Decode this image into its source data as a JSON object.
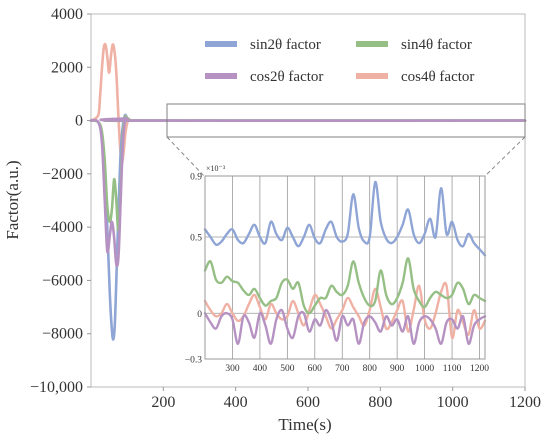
{
  "chart_data": [
    {
      "type": "line",
      "xlabel": "Time(s)",
      "ylabel": "Factor(a.u.)",
      "xlim": [
        0,
        1200
      ],
      "ylim": [
        -10000,
        4000
      ],
      "xticks": [
        200,
        400,
        600,
        800,
        1000,
        1200
      ],
      "xtick_labels": [
        "200",
        "400",
        "600",
        "800",
        "1000",
        "1200"
      ],
      "yticks": [
        4000,
        2000,
        0,
        -2000,
        -4000,
        -6000,
        -8000,
        -10000
      ],
      "ytick_labels": [
        "4000",
        "2000",
        "0",
        "−2000",
        "−4000",
        "−6000",
        "−8000",
        "−10,000"
      ],
      "grid": false,
      "legend": "top-right",
      "series": [
        {
          "name": "sin2θ factor",
          "color": "#8fa5d5",
          "x": [
            0,
            20,
            30,
            38,
            45,
            52,
            58,
            62,
            66,
            70,
            74,
            78,
            82,
            88,
            94,
            100,
            110,
            120,
            200,
            1200
          ],
          "y": [
            0,
            -60,
            -500,
            -1800,
            -4000,
            -6500,
            -7900,
            -8200,
            -7600,
            -6000,
            -4200,
            -2600,
            -1200,
            -200,
            200,
            100,
            0,
            0,
            0,
            0
          ]
        },
        {
          "name": "sin4θ factor",
          "color": "#95bf85",
          "x": [
            0,
            20,
            30,
            38,
            45,
            52,
            58,
            64,
            70,
            75,
            80,
            85,
            90,
            95,
            100,
            110,
            120,
            1200
          ],
          "y": [
            0,
            -50,
            -400,
            -1500,
            -3200,
            -3800,
            -3300,
            -2200,
            -3000,
            -4100,
            -3400,
            -1500,
            -200,
            150,
            100,
            0,
            0,
            0
          ]
        },
        {
          "name": "cos2θ factor",
          "color": "#b692c2",
          "x": [
            0,
            20,
            30,
            38,
            45,
            52,
            58,
            64,
            70,
            76,
            82,
            88,
            94,
            100,
            110,
            1200
          ],
          "y": [
            0,
            -60,
            -800,
            -3000,
            -4900,
            -4300,
            -3800,
            -4400,
            -5400,
            -5100,
            -3000,
            -900,
            0,
            80,
            0,
            0
          ]
        },
        {
          "name": "cos4θ factor",
          "color": "#f0b1a5",
          "x": [
            0,
            20,
            25,
            30,
            35,
            40,
            45,
            50,
            55,
            60,
            65,
            70,
            75,
            80,
            85,
            90,
            95,
            100,
            105,
            110,
            120,
            1200
          ],
          "y": [
            0,
            200,
            900,
            1900,
            2700,
            2850,
            2400,
            1800,
            2400,
            2850,
            2600,
            1800,
            400,
            -900,
            -1600,
            -1200,
            -500,
            -100,
            50,
            0,
            0,
            0
          ]
        }
      ]
    },
    {
      "type": "line",
      "title": "×10⁻³",
      "xlim": [
        200,
        1220
      ],
      "ylim": [
        -0.3,
        0.9
      ],
      "xticks": [
        300,
        400,
        500,
        600,
        700,
        800,
        900,
        1000,
        1100,
        1200
      ],
      "xtick_labels": [
        "300",
        "400",
        "500",
        "600",
        "700",
        "800",
        "900",
        "1000",
        "1100",
        "1200"
      ],
      "yticks": [
        0.9,
        0.5,
        0,
        -0.3
      ],
      "ytick_labels": [
        "0.9",
        "0.5",
        "0",
        "−0.3"
      ],
      "grid": true,
      "series": [
        {
          "name": "sin2θ factor",
          "color": "#8fa5d5",
          "x": [
            200,
            220,
            240,
            260,
            280,
            300,
            320,
            340,
            360,
            380,
            400,
            420,
            440,
            460,
            480,
            500,
            520,
            540,
            560,
            580,
            600,
            620,
            640,
            660,
            680,
            700,
            720,
            740,
            760,
            780,
            800,
            820,
            840,
            860,
            880,
            900,
            920,
            940,
            960,
            980,
            1000,
            1020,
            1040,
            1060,
            1080,
            1100,
            1120,
            1140,
            1160,
            1180,
            1200,
            1220
          ],
          "y": [
            0.55,
            0.5,
            0.45,
            0.47,
            0.52,
            0.55,
            0.48,
            0.46,
            0.52,
            0.58,
            0.5,
            0.46,
            0.6,
            0.52,
            0.48,
            0.56,
            0.5,
            0.44,
            0.5,
            0.58,
            0.49,
            0.46,
            0.55,
            0.6,
            0.5,
            0.47,
            0.52,
            0.78,
            0.56,
            0.47,
            0.5,
            0.86,
            0.6,
            0.49,
            0.46,
            0.5,
            0.58,
            0.68,
            0.52,
            0.46,
            0.52,
            0.62,
            0.5,
            0.82,
            0.52,
            0.6,
            0.48,
            0.44,
            0.52,
            0.46,
            0.42,
            0.38
          ]
        },
        {
          "name": "sin4θ factor",
          "color": "#95bf85",
          "x": [
            200,
            220,
            240,
            260,
            280,
            300,
            320,
            340,
            360,
            380,
            400,
            420,
            440,
            460,
            480,
            500,
            520,
            540,
            560,
            580,
            600,
            620,
            640,
            660,
            680,
            700,
            720,
            740,
            760,
            780,
            800,
            820,
            840,
            860,
            880,
            900,
            920,
            940,
            960,
            980,
            1000,
            1020,
            1040,
            1060,
            1080,
            1100,
            1120,
            1140,
            1160,
            1180,
            1200,
            1220
          ],
          "y": [
            0.28,
            0.34,
            0.22,
            0.2,
            0.24,
            0.21,
            0.2,
            0.15,
            0.12,
            0.16,
            0.1,
            0.05,
            0.08,
            0.1,
            0.2,
            0.22,
            0.16,
            0.2,
            0.05,
            0.0,
            0.05,
            0.1,
            0.1,
            0.18,
            0.14,
            0.12,
            0.18,
            0.34,
            0.2,
            0.1,
            0.05,
            0.08,
            0.28,
            0.12,
            0.06,
            0.1,
            0.2,
            0.36,
            0.16,
            0.08,
            0.04,
            0.1,
            0.14,
            0.12,
            0.1,
            0.12,
            0.2,
            0.16,
            0.06,
            0.12,
            0.1,
            0.08
          ]
        },
        {
          "name": "cos2θ factor",
          "color": "#b692c2",
          "x": [
            200,
            220,
            240,
            260,
            280,
            300,
            320,
            340,
            360,
            380,
            400,
            420,
            440,
            460,
            480,
            500,
            520,
            540,
            560,
            580,
            600,
            620,
            640,
            660,
            680,
            700,
            720,
            740,
            760,
            780,
            800,
            820,
            840,
            860,
            880,
            900,
            920,
            940,
            960,
            980,
            1000,
            1020,
            1040,
            1060,
            1080,
            1100,
            1120,
            1140,
            1160,
            1180,
            1200,
            1220
          ],
          "y": [
            0.0,
            -0.06,
            -0.1,
            -0.02,
            0.0,
            -0.04,
            -0.2,
            -0.02,
            -0.06,
            -0.16,
            0.0,
            -0.08,
            -0.2,
            -0.04,
            0.02,
            -0.1,
            -0.16,
            -0.02,
            0.0,
            -0.12,
            -0.04,
            -0.08,
            0.02,
            -0.05,
            -0.18,
            -0.02,
            -0.08,
            -0.04,
            -0.2,
            -0.06,
            -0.02,
            -0.06,
            -0.12,
            -0.02,
            -0.08,
            -0.04,
            -0.12,
            -0.02,
            -0.2,
            -0.06,
            -0.02,
            -0.04,
            -0.1,
            -0.2,
            -0.06,
            -0.04,
            -0.1,
            -0.02,
            -0.2,
            -0.08,
            -0.04,
            -0.02
          ]
        },
        {
          "name": "cos4θ factor",
          "color": "#f0b1a5",
          "x": [
            200,
            220,
            240,
            260,
            280,
            300,
            320,
            340,
            360,
            380,
            400,
            420,
            440,
            460,
            480,
            500,
            520,
            540,
            560,
            580,
            600,
            620,
            640,
            660,
            680,
            700,
            720,
            740,
            760,
            780,
            800,
            820,
            840,
            860,
            880,
            900,
            920,
            940,
            960,
            980,
            1000,
            1020,
            1040,
            1060,
            1080,
            1100,
            1120,
            1140,
            1160,
            1180,
            1200,
            1220
          ],
          "y": [
            0.08,
            0.02,
            -0.02,
            0.0,
            0.06,
            0.0,
            -0.05,
            -0.02,
            0.06,
            0.12,
            0.04,
            -0.04,
            0.06,
            0.0,
            -0.04,
            -0.02,
            0.08,
            0.0,
            -0.08,
            0.02,
            0.12,
            0.06,
            -0.02,
            -0.1,
            -0.04,
            0.02,
            0.1,
            0.04,
            -0.02,
            -0.08,
            0.02,
            0.16,
            0.04,
            -0.1,
            -0.06,
            0.02,
            0.08,
            -0.12,
            0.02,
            0.18,
            -0.04,
            -0.1,
            0.0,
            0.14,
            0.18,
            -0.16,
            0.02,
            -0.06,
            -0.14,
            0.02,
            -0.1,
            -0.05
          ]
        }
      ]
    }
  ]
}
